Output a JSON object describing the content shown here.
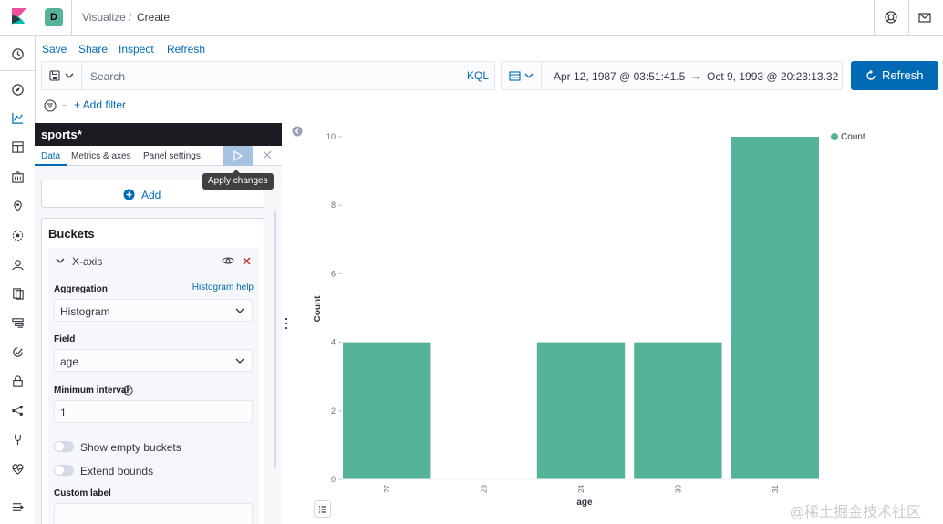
{
  "header": {
    "space_initial": "D",
    "breadcrumbs": [
      "Visualize",
      "Create"
    ]
  },
  "top_menu": [
    "Save",
    "Share",
    "Inspect",
    "Refresh"
  ],
  "query": {
    "placeholder": "Search",
    "language": "KQL"
  },
  "time": {
    "start": "Apr 12, 1987 @ 03:51:41.5",
    "arrow": "→",
    "end": "Oct 9, 1993 @ 20:23:13.32"
  },
  "refresh_button": "Refresh",
  "filter": {
    "add_label": "+ Add filter"
  },
  "editor": {
    "index_pattern": "sports*",
    "tabs": [
      "Data",
      "Metrics & axes",
      "Panel settings"
    ],
    "apply_tooltip": "Apply changes",
    "add_label": "Add",
    "buckets_title": "Buckets",
    "x_axis_label": "X-axis",
    "aggregation_label": "Aggregation",
    "aggregation_help": "Histogram help",
    "aggregation_value": "Histogram",
    "field_label": "Field",
    "field_value": "age",
    "min_interval_label": "Minimum interval",
    "min_interval_value": "1",
    "show_empty_buckets": "Show empty buckets",
    "extend_bounds": "Extend bounds",
    "custom_label": "Custom label"
  },
  "colors": {
    "accent": "#006bb4",
    "bar": "#54b399"
  },
  "chart_data": {
    "type": "bar",
    "categories": [
      "27",
      "23",
      "24",
      "30",
      "31"
    ],
    "values": [
      4,
      0,
      4,
      4,
      10
    ],
    "ylabel": "Count",
    "xlabel": "age",
    "ylim": [
      0,
      10
    ],
    "yticks": [
      0,
      2,
      4,
      6,
      8,
      10
    ],
    "legend": [
      "Count"
    ],
    "legend_position": "top-right",
    "grid": false
  },
  "watermark": "@稀土掘金技术社区"
}
